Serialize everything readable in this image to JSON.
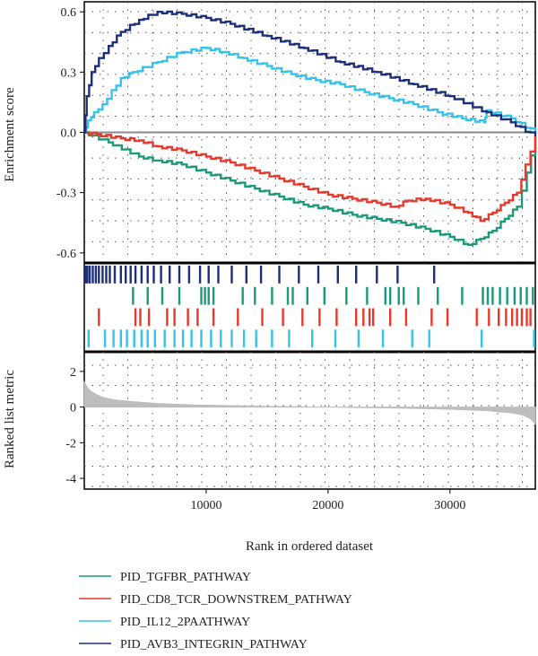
{
  "chart_data": {
    "type": "line",
    "title": "",
    "xlabel": "Rank in ordered dataset",
    "xlim": [
      0,
      37000
    ],
    "x_ticks": [
      10000,
      20000,
      30000
    ],
    "grid": true,
    "legend_position": "bottom-left",
    "enrichment": {
      "ylabel": "Enrichment score",
      "ylim": [
        -0.65,
        0.65
      ],
      "y_ticks": [
        "0.6",
        "0.3",
        "0.0",
        "-0.3",
        "-0.6"
      ],
      "baseline": 0
    },
    "ranked_metric": {
      "ylabel": "Ranked list metric",
      "ylim": [
        -4.6,
        3.1
      ],
      "y_ticks": [
        "2",
        "0",
        "-2",
        "-4"
      ],
      "x": [
        0,
        250,
        500,
        1000,
        1500,
        2500,
        4000,
        6000,
        9000,
        14000,
        20000,
        26000,
        30000,
        33000,
        35000,
        36000,
        36600,
        37000
      ],
      "values": [
        1.4,
        1.1,
        0.9,
        0.7,
        0.55,
        0.4,
        0.3,
        0.2,
        0.12,
        0.05,
        0.0,
        -0.06,
        -0.12,
        -0.2,
        -0.32,
        -0.45,
        -0.65,
        -0.95
      ]
    },
    "series": [
      {
        "name": "PID_TGFBR_PATHWAY",
        "color": "#1a9a78",
        "x": [
          0,
          2000,
          4500,
          6000,
          8000,
          10000,
          12000,
          14000,
          16000,
          18000,
          20000,
          22000,
          24000,
          26000,
          28000,
          30000,
          31500,
          32500,
          33500,
          34500,
          35500,
          36300,
          37000
        ],
        "values": [
          0.0,
          -0.05,
          -0.12,
          -0.14,
          -0.16,
          -0.2,
          -0.24,
          -0.28,
          -0.32,
          -0.36,
          -0.38,
          -0.41,
          -0.43,
          -0.45,
          -0.48,
          -0.52,
          -0.56,
          -0.53,
          -0.49,
          -0.43,
          -0.37,
          -0.2,
          -0.02
        ]
      },
      {
        "name": "PID_CD8_TCR_DOWNSTREM_PATHWAY",
        "color": "#e8382c",
        "x": [
          0,
          1000,
          3000,
          4500,
          6000,
          8000,
          10000,
          12000,
          14000,
          16000,
          18000,
          20000,
          22000,
          24000,
          25500,
          26500,
          28000,
          30000,
          31500,
          32500,
          33500,
          34500,
          35500,
          36200,
          37000
        ],
        "values": [
          0.0,
          -0.01,
          -0.03,
          -0.04,
          -0.07,
          -0.09,
          -0.12,
          -0.15,
          -0.19,
          -0.23,
          -0.27,
          -0.31,
          -0.33,
          -0.35,
          -0.37,
          -0.34,
          -0.33,
          -0.36,
          -0.4,
          -0.44,
          -0.4,
          -0.35,
          -0.3,
          -0.16,
          -0.02
        ]
      },
      {
        "name": "PID_IL12_2PAATHWAY",
        "color": "#36c2eb",
        "x": [
          0,
          300,
          800,
          1500,
          3000,
          4000,
          6000,
          8000,
          10000,
          11500,
          13000,
          15000,
          17000,
          19000,
          21000,
          23000,
          25000,
          27000,
          29000,
          31000,
          32800,
          33000,
          35000,
          37000
        ],
        "values": [
          0.0,
          0.06,
          0.1,
          0.14,
          0.27,
          0.3,
          0.35,
          0.4,
          0.42,
          0.4,
          0.37,
          0.33,
          0.29,
          0.26,
          0.24,
          0.2,
          0.17,
          0.14,
          0.1,
          0.07,
          0.05,
          0.11,
          0.07,
          0.0
        ]
      },
      {
        "name": "PID_AVB3_INTEGRIN_PATHWAY",
        "color": "#1d2f7a",
        "x": [
          0,
          200,
          600,
          1200,
          2000,
          3000,
          4500,
          6000,
          8000,
          10000,
          12000,
          15000,
          18000,
          21000,
          24000,
          27000,
          30000,
          33000,
          35000,
          37000
        ],
        "values": [
          0.0,
          0.18,
          0.3,
          0.37,
          0.43,
          0.5,
          0.56,
          0.6,
          0.59,
          0.57,
          0.54,
          0.48,
          0.42,
          0.35,
          0.3,
          0.24,
          0.18,
          0.1,
          0.05,
          -0.02
        ]
      }
    ],
    "hit_ranks": [
      {
        "series": "PID_AVB3_INTEGRIN_PATHWAY",
        "color": "#1d2f7a",
        "positions": [
          100,
          250,
          450,
          700,
          950,
          1200,
          1500,
          1800,
          2100,
          2500,
          3000,
          3400,
          3800,
          4200,
          4700,
          5200,
          5700,
          6300,
          7000,
          7800,
          8600,
          9500,
          10200,
          11000,
          12100,
          13300,
          14500,
          16000,
          17600,
          19200,
          20800,
          22300,
          24000,
          25700,
          28700
        ]
      },
      {
        "series": "PID_TGFBR_PATHWAY",
        "color": "#1a9a78",
        "positions": [
          4000,
          5200,
          6400,
          7800,
          9600,
          9900,
          10200,
          10600,
          13000,
          14000,
          15400,
          16700,
          17100,
          18300,
          19700,
          21500,
          23200,
          24700,
          25100,
          25800,
          26200,
          27400,
          29000,
          31000,
          32700,
          33100,
          33500,
          34100,
          34700,
          35300,
          35800,
          36300,
          36800
        ]
      },
      {
        "series": "PID_CD8_TCR_DOWNSTREM_PATHWAY",
        "color": "#e8382c",
        "positions": [
          1200,
          4200,
          4600,
          5300,
          6800,
          7400,
          8500,
          9300,
          10600,
          12600,
          14600,
          16300,
          17900,
          19300,
          20700,
          22300,
          22900,
          23400,
          23700,
          25100,
          26400,
          28500,
          29800,
          32200,
          33200,
          34000,
          34600,
          35100,
          35500,
          35900,
          36300,
          36600
        ]
      },
      {
        "series": "PID_IL12_2PAATHWAY",
        "color": "#36c2eb",
        "positions": [
          350,
          1700,
          2400,
          3000,
          3500,
          4100,
          4700,
          5200,
          5800,
          6600,
          7400,
          8100,
          8800,
          9600,
          10400,
          11200,
          12100,
          13100,
          14100,
          15400,
          16800,
          18700,
          20600,
          22500,
          24500,
          26900,
          28300,
          32600,
          36900
        ]
      }
    ]
  }
}
